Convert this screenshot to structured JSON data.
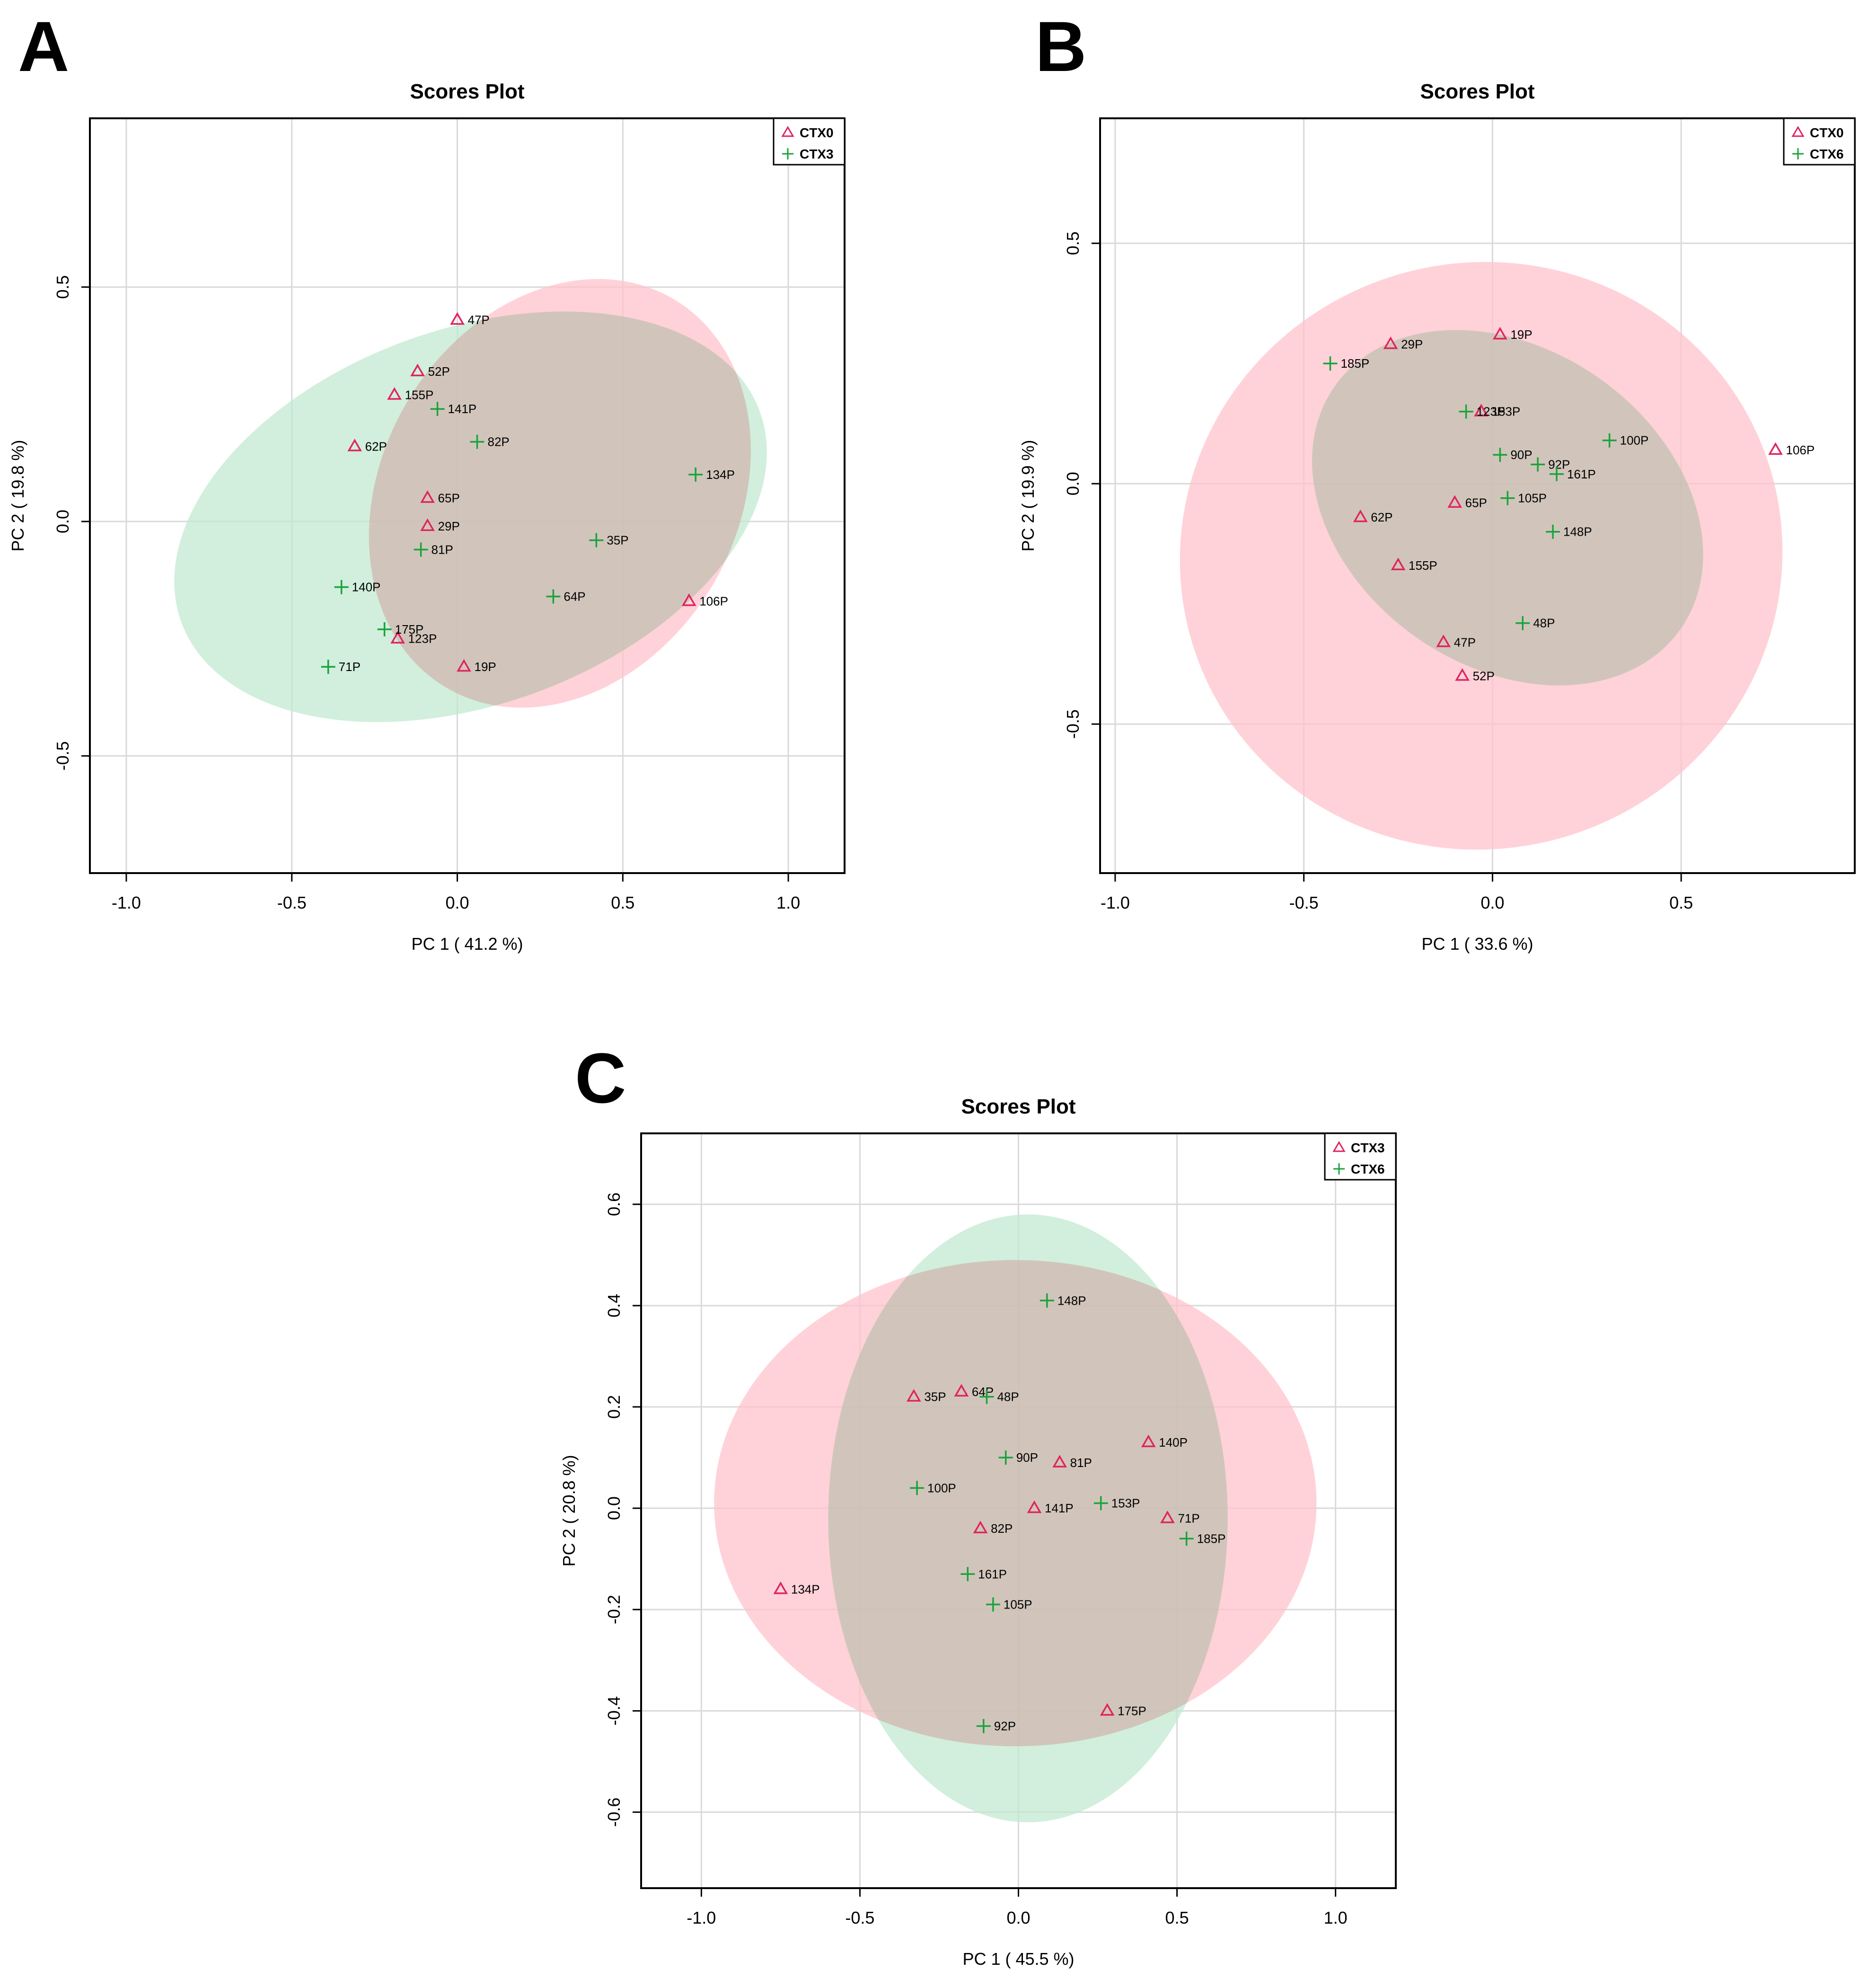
{
  "colors": {
    "group1": "#e0245e",
    "group2": "#1aa33c",
    "ellipse1": "#ffc0cb",
    "ellipse2": "#bfe9cf"
  },
  "chart_data": [
    {
      "panel_letter": "A",
      "type": "scatter",
      "title": "Scores Plot",
      "xlabel": "PC 1 ( 41.2 %)",
      "ylabel": "PC 2 ( 19.8 %)",
      "xlim": [
        -1.11,
        1.17
      ],
      "ylim": [
        -0.75,
        0.86
      ],
      "xticks": [
        -1.0,
        -0.5,
        0.0,
        0.5,
        1.0
      ],
      "xtick_labels": [
        "-1.0",
        "-0.5",
        "0.0",
        "0.5",
        "1.0"
      ],
      "yticks": [
        -0.5,
        0.0,
        0.5
      ],
      "ytick_labels": [
        "-0.5",
        "0.0",
        "0.5"
      ],
      "grid": true,
      "legend_position": "top-right",
      "series": [
        {
          "name": "CTX0",
          "marker": "triangle",
          "ellipse": {
            "cx": 0.31,
            "cy": 0.06,
            "rx": 0.68,
            "ry": 0.38,
            "angle": 60
          },
          "points": [
            {
              "label": "47P",
              "x": 0.0,
              "y": 0.43
            },
            {
              "label": "52P",
              "x": -0.12,
              "y": 0.32
            },
            {
              "label": "155P",
              "x": -0.19,
              "y": 0.27
            },
            {
              "label": "62P",
              "x": -0.31,
              "y": 0.16
            },
            {
              "label": "65P",
              "x": -0.09,
              "y": 0.05
            },
            {
              "label": "29P",
              "x": -0.09,
              "y": -0.01
            },
            {
              "label": "123P",
              "x": -0.18,
              "y": -0.25
            },
            {
              "label": "19P",
              "x": 0.02,
              "y": -0.31
            },
            {
              "label": "106P",
              "x": 0.7,
              "y": -0.17
            }
          ]
        },
        {
          "name": "CTX3",
          "marker": "plus",
          "ellipse": {
            "cx": 0.04,
            "cy": 0.01,
            "rx": 0.93,
            "ry": 0.4,
            "angle": 20
          },
          "points": [
            {
              "label": "141P",
              "x": -0.06,
              "y": 0.24
            },
            {
              "label": "82P",
              "x": 0.06,
              "y": 0.17
            },
            {
              "label": "134P",
              "x": 0.72,
              "y": 0.1
            },
            {
              "label": "35P",
              "x": 0.42,
              "y": -0.04
            },
            {
              "label": "81P",
              "x": -0.11,
              "y": -0.06
            },
            {
              "label": "140P",
              "x": -0.35,
              "y": -0.14
            },
            {
              "label": "64P",
              "x": 0.29,
              "y": -0.16
            },
            {
              "label": "175P",
              "x": -0.22,
              "y": -0.23
            },
            {
              "label": "71P",
              "x": -0.39,
              "y": -0.31
            }
          ]
        }
      ]
    },
    {
      "panel_letter": "B",
      "type": "scatter",
      "title": "Scores Plot",
      "xlabel": "PC 1 ( 33.6 %)",
      "ylabel": "PC 2 ( 19.9 %)",
      "xlim": [
        -1.04,
        0.96
      ],
      "ylim": [
        -0.81,
        0.76
      ],
      "xticks": [
        -1.0,
        -0.5,
        0.0,
        0.5
      ],
      "xtick_labels": [
        "-1.0",
        "-0.5",
        "0.0",
        "0.5"
      ],
      "yticks": [
        -0.5,
        0.0,
        0.5
      ],
      "ytick_labels": [
        "-0.5",
        "0.0",
        "0.5"
      ],
      "grid": true,
      "legend_position": "top-right",
      "series": [
        {
          "name": "CTX0",
          "marker": "triangle",
          "ellipse": {
            "cx": -0.03,
            "cy": -0.15,
            "rx": 0.8,
            "ry": 0.61,
            "angle": 15
          },
          "points": [
            {
              "label": "19P",
              "x": 0.02,
              "y": 0.31
            },
            {
              "label": "29P",
              "x": -0.27,
              "y": 0.29
            },
            {
              "label": "153P",
              "x": -0.03,
              "y": 0.15
            },
            {
              "label": "65P",
              "x": -0.1,
              "y": -0.04
            },
            {
              "label": "62P",
              "x": -0.35,
              "y": -0.07
            },
            {
              "label": "155P",
              "x": -0.25,
              "y": -0.17
            },
            {
              "label": "47P",
              "x": -0.13,
              "y": -0.33
            },
            {
              "label": "52P",
              "x": -0.08,
              "y": -0.4
            },
            {
              "label": "106P",
              "x": 0.75,
              "y": 0.07
            }
          ]
        },
        {
          "name": "CTX6",
          "marker": "plus",
          "ellipse": {
            "cx": 0.04,
            "cy": -0.05,
            "rx": 0.56,
            "ry": 0.33,
            "angle": -35
          },
          "points": [
            {
              "label": "185P",
              "x": -0.43,
              "y": 0.25
            },
            {
              "label": "123P",
              "x": -0.07,
              "y": 0.15
            },
            {
              "label": "90P",
              "x": 0.02,
              "y": 0.06
            },
            {
              "label": "92P",
              "x": 0.12,
              "y": 0.04
            },
            {
              "label": "161P",
              "x": 0.17,
              "y": 0.02
            },
            {
              "label": "100P",
              "x": 0.31,
              "y": 0.09
            },
            {
              "label": "105P",
              "x": 0.04,
              "y": -0.03
            },
            {
              "label": "148P",
              "x": 0.16,
              "y": -0.1
            },
            {
              "label": "48P",
              "x": 0.08,
              "y": -0.29
            }
          ]
        }
      ]
    },
    {
      "panel_letter": "C",
      "type": "scatter",
      "title": "Scores Plot",
      "xlabel": "PC 1 ( 45.5 %)",
      "ylabel": "PC 2 ( 20.8 %)",
      "xlim": [
        -1.19,
        1.19
      ],
      "ylim": [
        -0.75,
        0.74
      ],
      "xticks": [
        -1.0,
        -0.5,
        0.0,
        0.5,
        1.0
      ],
      "xtick_labels": [
        "-1.0",
        "-0.5",
        "0.0",
        "0.5",
        "1.0"
      ],
      "yticks": [
        -0.6,
        -0.4,
        -0.2,
        0.0,
        0.2,
        0.4,
        0.6
      ],
      "ytick_labels": [
        "-0.6",
        "-0.4",
        "-0.2",
        "0.0",
        "0.2",
        "0.4",
        "0.6"
      ],
      "grid": true,
      "legend_position": "top-right",
      "series": [
        {
          "name": "CTX3",
          "marker": "triangle",
          "ellipse": {
            "cx": -0.01,
            "cy": 0.01,
            "rx": 0.95,
            "ry": 0.48,
            "angle": 0
          },
          "points": [
            {
              "label": "35P",
              "x": -0.33,
              "y": 0.22
            },
            {
              "label": "64P",
              "x": -0.18,
              "y": 0.23
            },
            {
              "label": "140P",
              "x": 0.41,
              "y": 0.13
            },
            {
              "label": "81P",
              "x": 0.13,
              "y": 0.09
            },
            {
              "label": "141P",
              "x": 0.05,
              "y": 0.0
            },
            {
              "label": "71P",
              "x": 0.47,
              "y": -0.02
            },
            {
              "label": "82P",
              "x": -0.12,
              "y": -0.04
            },
            {
              "label": "134P",
              "x": -0.75,
              "y": -0.16
            },
            {
              "label": "175P",
              "x": 0.28,
              "y": -0.4
            }
          ]
        },
        {
          "name": "CTX6",
          "marker": "plus",
          "ellipse": {
            "cx": 0.03,
            "cy": -0.02,
            "rx": 0.63,
            "ry": 0.6,
            "angle": 0
          },
          "points": [
            {
              "label": "148P",
              "x": 0.09,
              "y": 0.41
            },
            {
              "label": "48P",
              "x": -0.1,
              "y": 0.22
            },
            {
              "label": "90P",
              "x": -0.04,
              "y": 0.1
            },
            {
              "label": "100P",
              "x": -0.32,
              "y": 0.04
            },
            {
              "label": "153P",
              "x": 0.26,
              "y": 0.01
            },
            {
              "label": "185P",
              "x": 0.53,
              "y": -0.06
            },
            {
              "label": "161P",
              "x": -0.16,
              "y": -0.13
            },
            {
              "label": "105P",
              "x": -0.08,
              "y": -0.19
            },
            {
              "label": "92P",
              "x": -0.11,
              "y": -0.43
            }
          ]
        }
      ]
    }
  ]
}
